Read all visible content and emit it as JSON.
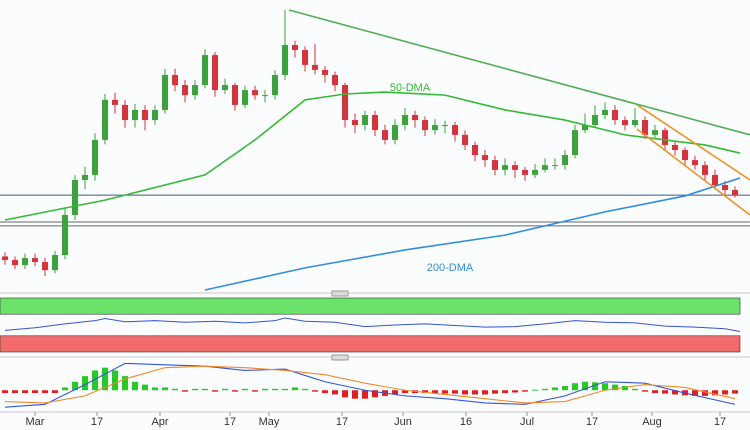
{
  "chart_data": [
    {
      "type": "candlestick",
      "ylim": [
        0,
        100
      ],
      "up_color": "#3aa33a",
      "down_color": "#d8323a",
      "ohlc": [
        [
          12,
          13.5,
          9,
          10.7
        ],
        [
          10.7,
          12,
          7.5,
          8.9
        ],
        [
          8.9,
          13,
          7.5,
          11.4
        ],
        [
          11.4,
          13,
          8.5,
          10.0
        ],
        [
          10.0,
          11.5,
          5,
          7.1
        ],
        [
          7.1,
          14,
          6,
          12.5
        ],
        [
          12.5,
          29,
          11,
          26.8
        ],
        [
          26.8,
          41,
          25,
          39.3
        ],
        [
          39.3,
          44,
          36,
          41.1
        ],
        [
          41.1,
          56,
          39,
          53.6
        ],
        [
          53.6,
          70,
          52,
          67.9
        ],
        [
          67.9,
          70.5,
          63,
          66.1
        ],
        [
          66.1,
          68,
          58,
          60.7
        ],
        [
          60.7,
          66.5,
          58,
          64.3
        ],
        [
          64.3,
          66,
          57,
          60.7
        ],
        [
          60.7,
          66,
          59,
          64.3
        ],
        [
          64.3,
          79,
          63,
          76.8
        ],
        [
          76.8,
          79,
          71,
          73.2
        ],
        [
          73.2,
          75,
          67,
          69.6
        ],
        [
          69.6,
          75,
          68,
          73.2
        ],
        [
          73.2,
          86,
          72,
          83.9
        ],
        [
          83.9,
          85,
          69,
          71.4
        ],
        [
          71.4,
          75.5,
          70,
          73.2
        ],
        [
          73.2,
          74,
          64,
          66.1
        ],
        [
          66.1,
          73,
          65,
          71.4
        ],
        [
          71.4,
          73,
          68,
          69.6
        ],
        [
          69.6,
          71.5,
          67,
          69.6
        ],
        [
          69.6,
          78.5,
          68,
          76.8
        ],
        [
          76.8,
          100,
          75,
          87.5
        ],
        [
          87.5,
          89,
          83,
          85.7
        ],
        [
          85.7,
          87,
          78,
          80.4
        ],
        [
          80.4,
          88,
          77,
          78.6
        ],
        [
          78.6,
          80,
          74,
          76.8
        ],
        [
          76.8,
          78,
          71,
          73.2
        ],
        [
          73.2,
          74,
          58,
          60.7
        ],
        [
          60.7,
          63,
          56,
          58.9
        ],
        [
          58.9,
          64,
          57,
          62.5
        ],
        [
          62.5,
          64,
          55,
          57.1
        ],
        [
          57.1,
          59,
          52,
          53.6
        ],
        [
          53.6,
          61,
          52,
          58.9
        ],
        [
          58.9,
          65,
          57,
          62.5
        ],
        [
          62.5,
          64,
          58,
          60.7
        ],
        [
          60.7,
          62,
          55,
          57.1
        ],
        [
          57.1,
          61,
          55.5,
          58.9
        ],
        [
          58.9,
          60.5,
          56,
          58.9
        ],
        [
          58.9,
          60,
          53,
          55.4
        ],
        [
          55.4,
          57,
          50,
          51.8
        ],
        [
          51.8,
          53,
          46,
          48.2
        ],
        [
          48.2,
          50,
          44,
          46.4
        ],
        [
          46.4,
          48,
          41,
          42.9
        ],
        [
          42.9,
          47,
          41,
          44.6
        ],
        [
          44.6,
          46,
          40,
          42.9
        ],
        [
          42.9,
          44,
          39,
          41.1
        ],
        [
          41.1,
          45,
          40,
          42.9
        ],
        [
          42.9,
          47,
          42,
          44.6
        ],
        [
          44.6,
          47,
          43,
          44.6
        ],
        [
          44.6,
          50,
          43,
          48.2
        ],
        [
          48.2,
          59,
          47,
          57.1
        ],
        [
          57.1,
          63,
          56,
          58.9
        ],
        [
          58.9,
          66,
          58,
          62.5
        ],
        [
          62.5,
          67,
          61,
          64.3
        ],
        [
          64.3,
          66,
          59,
          60.7
        ],
        [
          60.7,
          62,
          57,
          58.9
        ],
        [
          58.9,
          65,
          58,
          60.7
        ],
        [
          60.7,
          62,
          54,
          55.4
        ],
        [
          55.4,
          59,
          54,
          57.1
        ],
        [
          57.1,
          58,
          50,
          51.8
        ],
        [
          51.8,
          53,
          48,
          50.0
        ],
        [
          50.0,
          51,
          44,
          46.4
        ],
        [
          46.4,
          48,
          43,
          44.6
        ],
        [
          44.6,
          46,
          39,
          41.1
        ],
        [
          41.1,
          43,
          36,
          37.5
        ],
        [
          37.5,
          39,
          34,
          35.7
        ],
        [
          35.7,
          37,
          33,
          33.9
        ]
      ],
      "hlines": [
        {
          "value": 33.9,
          "color": "#3a5a8a"
        },
        {
          "value": 24.3,
          "color": "#666666"
        },
        {
          "value": 22.9,
          "color": "#666666"
        }
      ],
      "series": [
        {
          "name": "50-DMA",
          "color": "#33bb33",
          "x": [
            0,
            10,
            20,
            25,
            30,
            34,
            38,
            44,
            50,
            56,
            62,
            70,
            73.5
          ],
          "values": [
            25,
            32.1,
            41.1,
            53.6,
            67.9,
            70,
            70.7,
            69.6,
            64.3,
            60.7,
            55.4,
            51.8,
            48.9
          ]
        },
        {
          "name": "200-DMA",
          "color": "#2f8fdc",
          "x": [
            20,
            30,
            40,
            50,
            60,
            68,
            73.5
          ],
          "values": [
            0,
            7.9,
            14.3,
            19.6,
            27.9,
            33.6,
            40
          ]
        }
      ],
      "trendlines": [
        {
          "color": "#4fae4f",
          "x": [
            28.4,
            74.5
          ],
          "values": [
            100,
            55.4
          ]
        },
        {
          "color": "#f29222",
          "x": [
            63.2,
            74.5
          ],
          "values": [
            66.1,
            39.3
          ]
        },
        {
          "color": "#f29222",
          "x": [
            63.2,
            74.5
          ],
          "values": [
            57.5,
            26.8
          ]
        }
      ]
    },
    {
      "type": "rsi",
      "ylim": [
        0,
        100
      ],
      "color": "#3355cc",
      "bands": [
        {
          "from": 70,
          "to": 100,
          "color": "#6be36b"
        },
        {
          "from": 0,
          "to": 30,
          "color": "#f26b6b"
        }
      ],
      "x": [
        0,
        3,
        6,
        9,
        10,
        12,
        15,
        18,
        21,
        24,
        27,
        28,
        30,
        33,
        36,
        39,
        42,
        45,
        48,
        51,
        54,
        57,
        60,
        63,
        66,
        69,
        72,
        73.5
      ],
      "values": [
        40,
        45,
        52,
        58,
        62,
        56,
        58,
        55,
        57,
        54,
        58,
        63,
        57,
        55,
        47,
        50,
        52,
        49,
        46,
        47,
        52,
        58,
        55,
        54,
        48,
        46,
        43,
        38
      ]
    },
    {
      "type": "macd",
      "ylim": [
        -0.7,
        1
      ],
      "up_color": "#22cc22",
      "down_color": "#e81c1c",
      "histogram": [
        -0.1,
        -0.1,
        -0.1,
        -0.1,
        -0.1,
        -0.1,
        0.1,
        0.3,
        0.5,
        0.7,
        0.8,
        0.7,
        0.5,
        0.3,
        0.2,
        0.1,
        0.1,
        0.05,
        -0.05,
        0.05,
        0.05,
        -0.05,
        0.05,
        -0.05,
        0.05,
        -0.05,
        0.05,
        0.05,
        0.05,
        0.1,
        0.05,
        -0.05,
        -0.1,
        -0.15,
        -0.25,
        -0.3,
        -0.3,
        -0.25,
        -0.2,
        -0.15,
        -0.1,
        -0.1,
        -0.1,
        -0.1,
        -0.12,
        -0.12,
        -0.15,
        -0.15,
        -0.15,
        -0.12,
        -0.1,
        -0.08,
        -0.05,
        0.02,
        0.05,
        0.1,
        0.15,
        0.25,
        0.3,
        0.28,
        0.25,
        0.2,
        0.15,
        0.05,
        -0.05,
        -0.1,
        -0.12,
        -0.15,
        -0.18,
        -0.2,
        -0.2,
        -0.18,
        -0.15,
        -0.12
      ],
      "series": [
        {
          "color": "#3355dd",
          "x": [
            0,
            4,
            8,
            12,
            16,
            20,
            24,
            28,
            32,
            36,
            40,
            44,
            48,
            52,
            56,
            60,
            64,
            68,
            73
          ],
          "values": [
            -0.6,
            -0.5,
            0.2,
            0.95,
            0.9,
            0.85,
            0.7,
            0.75,
            0.3,
            0.0,
            -0.2,
            -0.3,
            -0.45,
            -0.5,
            -0.2,
            0.3,
            0.25,
            -0.1,
            -0.5
          ]
        },
        {
          "color": "#f08a2a",
          "x": [
            0,
            4,
            8,
            12,
            16,
            20,
            24,
            28,
            32,
            36,
            40,
            44,
            48,
            52,
            56,
            60,
            64,
            68,
            73
          ],
          "values": [
            -0.4,
            -0.45,
            -0.2,
            0.4,
            0.8,
            0.85,
            0.8,
            0.7,
            0.55,
            0.25,
            0.0,
            -0.15,
            -0.3,
            -0.45,
            -0.4,
            0.0,
            0.2,
            0.1,
            -0.3
          ]
        }
      ],
      "xticks": [
        {
          "value": 3,
          "label": "Mar"
        },
        {
          "value": 9.2,
          "label": "17"
        },
        {
          "value": 15.5,
          "label": "Apr"
        },
        {
          "value": 22.5,
          "label": "17"
        },
        {
          "value": 26.4,
          "label": "May"
        },
        {
          "value": 33.7,
          "label": "17"
        },
        {
          "value": 39.8,
          "label": "Jun"
        },
        {
          "value": 46.1,
          "label": "16"
        },
        {
          "value": 52.2,
          "label": "Jul"
        },
        {
          "value": 58.7,
          "label": "17"
        },
        {
          "value": 64.7,
          "label": "Aug"
        },
        {
          "value": 71.5,
          "label": "17"
        }
      ]
    }
  ]
}
